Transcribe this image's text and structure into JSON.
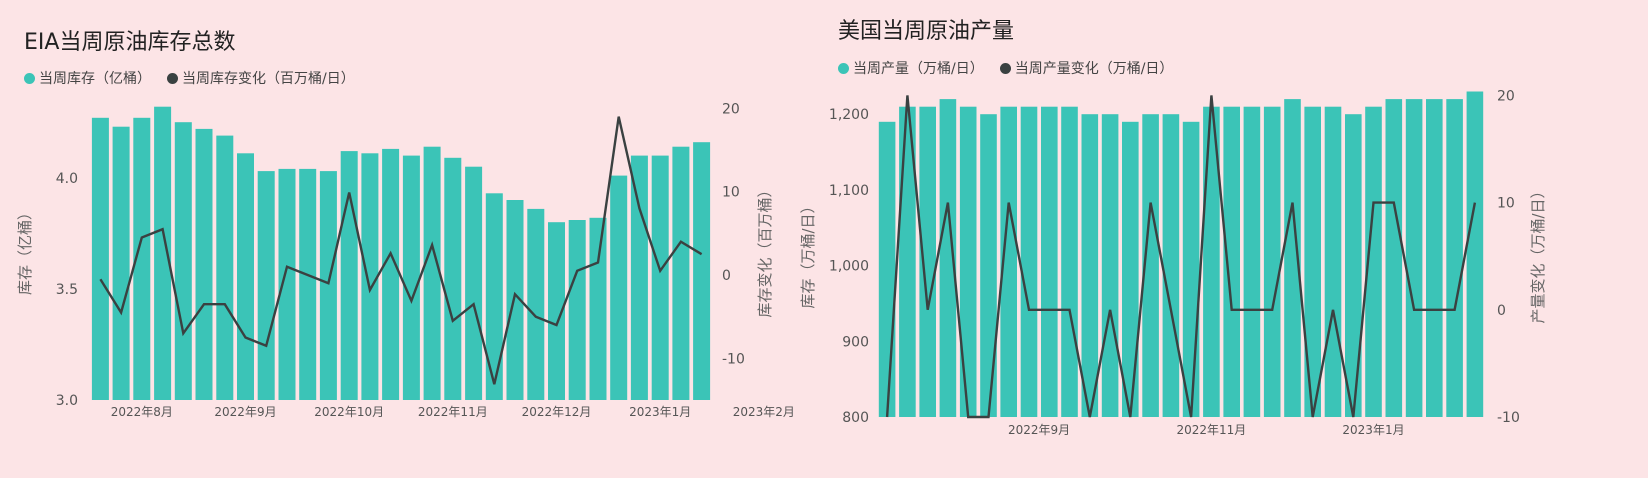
{
  "colors": {
    "bar": "#3bc4b7",
    "line": "#3a4141",
    "background": "#fce4e6"
  },
  "chart_data": [
    {
      "type": "bar",
      "title": "EIA当周原油库存总数",
      "legend": [
        {
          "label": "当周库存（亿桶）",
          "color": "#3bc4b7",
          "marker": "circle"
        },
        {
          "label": "当周库存变化（百万桶/日）",
          "color": "#3a4141",
          "marker": "circle"
        }
      ],
      "x_ticks": [
        "2022年8月",
        "2022年9月",
        "2022年10月",
        "2022年11月",
        "2022年12月",
        "2023年1月",
        "2023年2月"
      ],
      "x_tick_positions": [
        2,
        7,
        12,
        17,
        22,
        27,
        32
      ],
      "y_left": {
        "label": "库存（亿桶）",
        "range": [
          3.0,
          4.35
        ],
        "ticks": [
          "3.0",
          "3.5",
          "4.0"
        ],
        "tick_values": [
          3.0,
          3.5,
          4.0
        ]
      },
      "y_right": {
        "label": "库存变化（百万桶）",
        "range": [
          -15,
          21
        ],
        "ticks": [
          "-10",
          "0",
          "10",
          "20"
        ],
        "tick_values": [
          -10,
          0,
          10,
          20
        ]
      },
      "series": [
        {
          "name": "当周库存（亿桶）",
          "axis": "left",
          "kind": "bar",
          "values": [
            4.27,
            4.23,
            4.27,
            4.32,
            4.25,
            4.22,
            4.19,
            4.11,
            4.03,
            4.04,
            4.04,
            4.03,
            4.12,
            4.11,
            4.13,
            4.1,
            4.14,
            4.09,
            4.05,
            3.93,
            3.9,
            3.86,
            3.8,
            3.81,
            3.82,
            4.01,
            4.1,
            4.1,
            4.14,
            4.16
          ]
        },
        {
          "name": "当周库存变化（百万桶/日）",
          "axis": "right",
          "kind": "line",
          "values": [
            -0.5,
            -4.5,
            4.5,
            5.5,
            -7.0,
            -3.5,
            -3.5,
            -7.5,
            -8.5,
            1.0,
            0,
            -1.0,
            9.9,
            -1.8,
            2.6,
            -3.1,
            3.6,
            -5.5,
            -3.5,
            -13.1,
            -2.3,
            -5.0,
            -6.0,
            0.5,
            1.5,
            19.0,
            8.0,
            0.5,
            4.0,
            2.5
          ]
        }
      ]
    },
    {
      "type": "bar",
      "title": "美国当周原油产量",
      "legend": [
        {
          "label": "当周产量（万桶/日）",
          "color": "#3bc4b7",
          "marker": "circle"
        },
        {
          "label": "当周产量变化（万桶/日）",
          "color": "#3a4141",
          "marker": "circle"
        }
      ],
      "x_ticks": [
        "2022年9月",
        "2022年11月",
        "2023年1月"
      ],
      "x_tick_positions": [
        7.5,
        16,
        24
      ],
      "y_left": {
        "label": "库存（万桶/日）",
        "range": [
          800,
          1232
        ],
        "ticks": [
          "800",
          "900",
          "1,000",
          "1,100",
          "1,200"
        ],
        "tick_values": [
          800,
          900,
          1000,
          1100,
          1200
        ]
      },
      "y_right": {
        "label": "产量变化（万桶/日）",
        "range": [
          -10,
          20.5
        ],
        "ticks": [
          "-10",
          "0",
          "10",
          "20"
        ],
        "tick_values": [
          -10,
          0,
          10,
          20
        ]
      },
      "series": [
        {
          "name": "当周产量（万桶/日）",
          "axis": "left",
          "kind": "bar",
          "values": [
            1190,
            1210,
            1210,
            1220,
            1210,
            1200,
            1210,
            1210,
            1210,
            1210,
            1200,
            1200,
            1190,
            1200,
            1200,
            1190,
            1210,
            1210,
            1210,
            1210,
            1220,
            1210,
            1210,
            1200,
            1210,
            1220,
            1220,
            1220,
            1220,
            1230
          ]
        },
        {
          "name": "当周产量变化（万桶/日）",
          "axis": "right",
          "kind": "line",
          "values": [
            -10,
            20,
            0,
            10,
            -10,
            -10,
            10,
            0,
            0,
            0,
            -10,
            0,
            -10,
            10,
            0,
            -10,
            20,
            0,
            0,
            0,
            10,
            -10,
            0,
            -10,
            10,
            10,
            0,
            0,
            0,
            10
          ]
        }
      ]
    }
  ]
}
